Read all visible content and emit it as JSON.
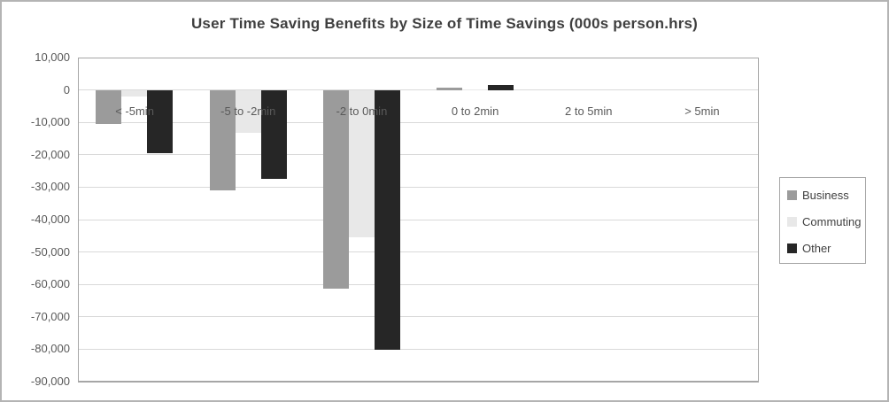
{
  "title": "User Time Saving Benefits by Size of Time Savings (000s person.hrs)",
  "colors": {
    "business": "#9b9b9b",
    "commuting": "#e8e8e8",
    "other": "#262626",
    "gridline": "#d9d9d9",
    "plot_border": "#a6a6a6",
    "tick_text": "#595959",
    "title_text": "#3f3f3f",
    "legend_border": "#a6a6a6",
    "legend_text": "#404040",
    "frame_border": "#b4b4b4"
  },
  "chart_data": {
    "type": "bar",
    "title": "User Time Saving Benefits by Size of Time Savings (000s person.hrs)",
    "categories": [
      "< -5min",
      "-5 to -2min",
      "-2 to 0min",
      "0 to 2min",
      "2 to 5min",
      "> 5min"
    ],
    "series": [
      {
        "name": "Business",
        "color": "#9b9b9b",
        "values": [
          -10400,
          -31000,
          -61400,
          800,
          0,
          0
        ]
      },
      {
        "name": "Commuting",
        "color": "#e8e8e8",
        "values": [
          -2000,
          -13300,
          -45600,
          250,
          0,
          0
        ]
      },
      {
        "name": "Other",
        "color": "#262626",
        "values": [
          -19500,
          -27300,
          -80100,
          1400,
          0,
          0
        ]
      }
    ],
    "xlabel": "",
    "ylabel": "",
    "ylim": [
      -90000,
      10000
    ],
    "ytick_step": 10000,
    "y_tick_labels": [
      "10,000",
      "0",
      "-10,000",
      "-20,000",
      "-30,000",
      "-40,000",
      "-50,000",
      "-60,000",
      "-70,000",
      "-80,000",
      "-90,000"
    ],
    "grid": true,
    "legend_position": "right",
    "legend_items": [
      "Business",
      "Commuting",
      "Other"
    ]
  }
}
